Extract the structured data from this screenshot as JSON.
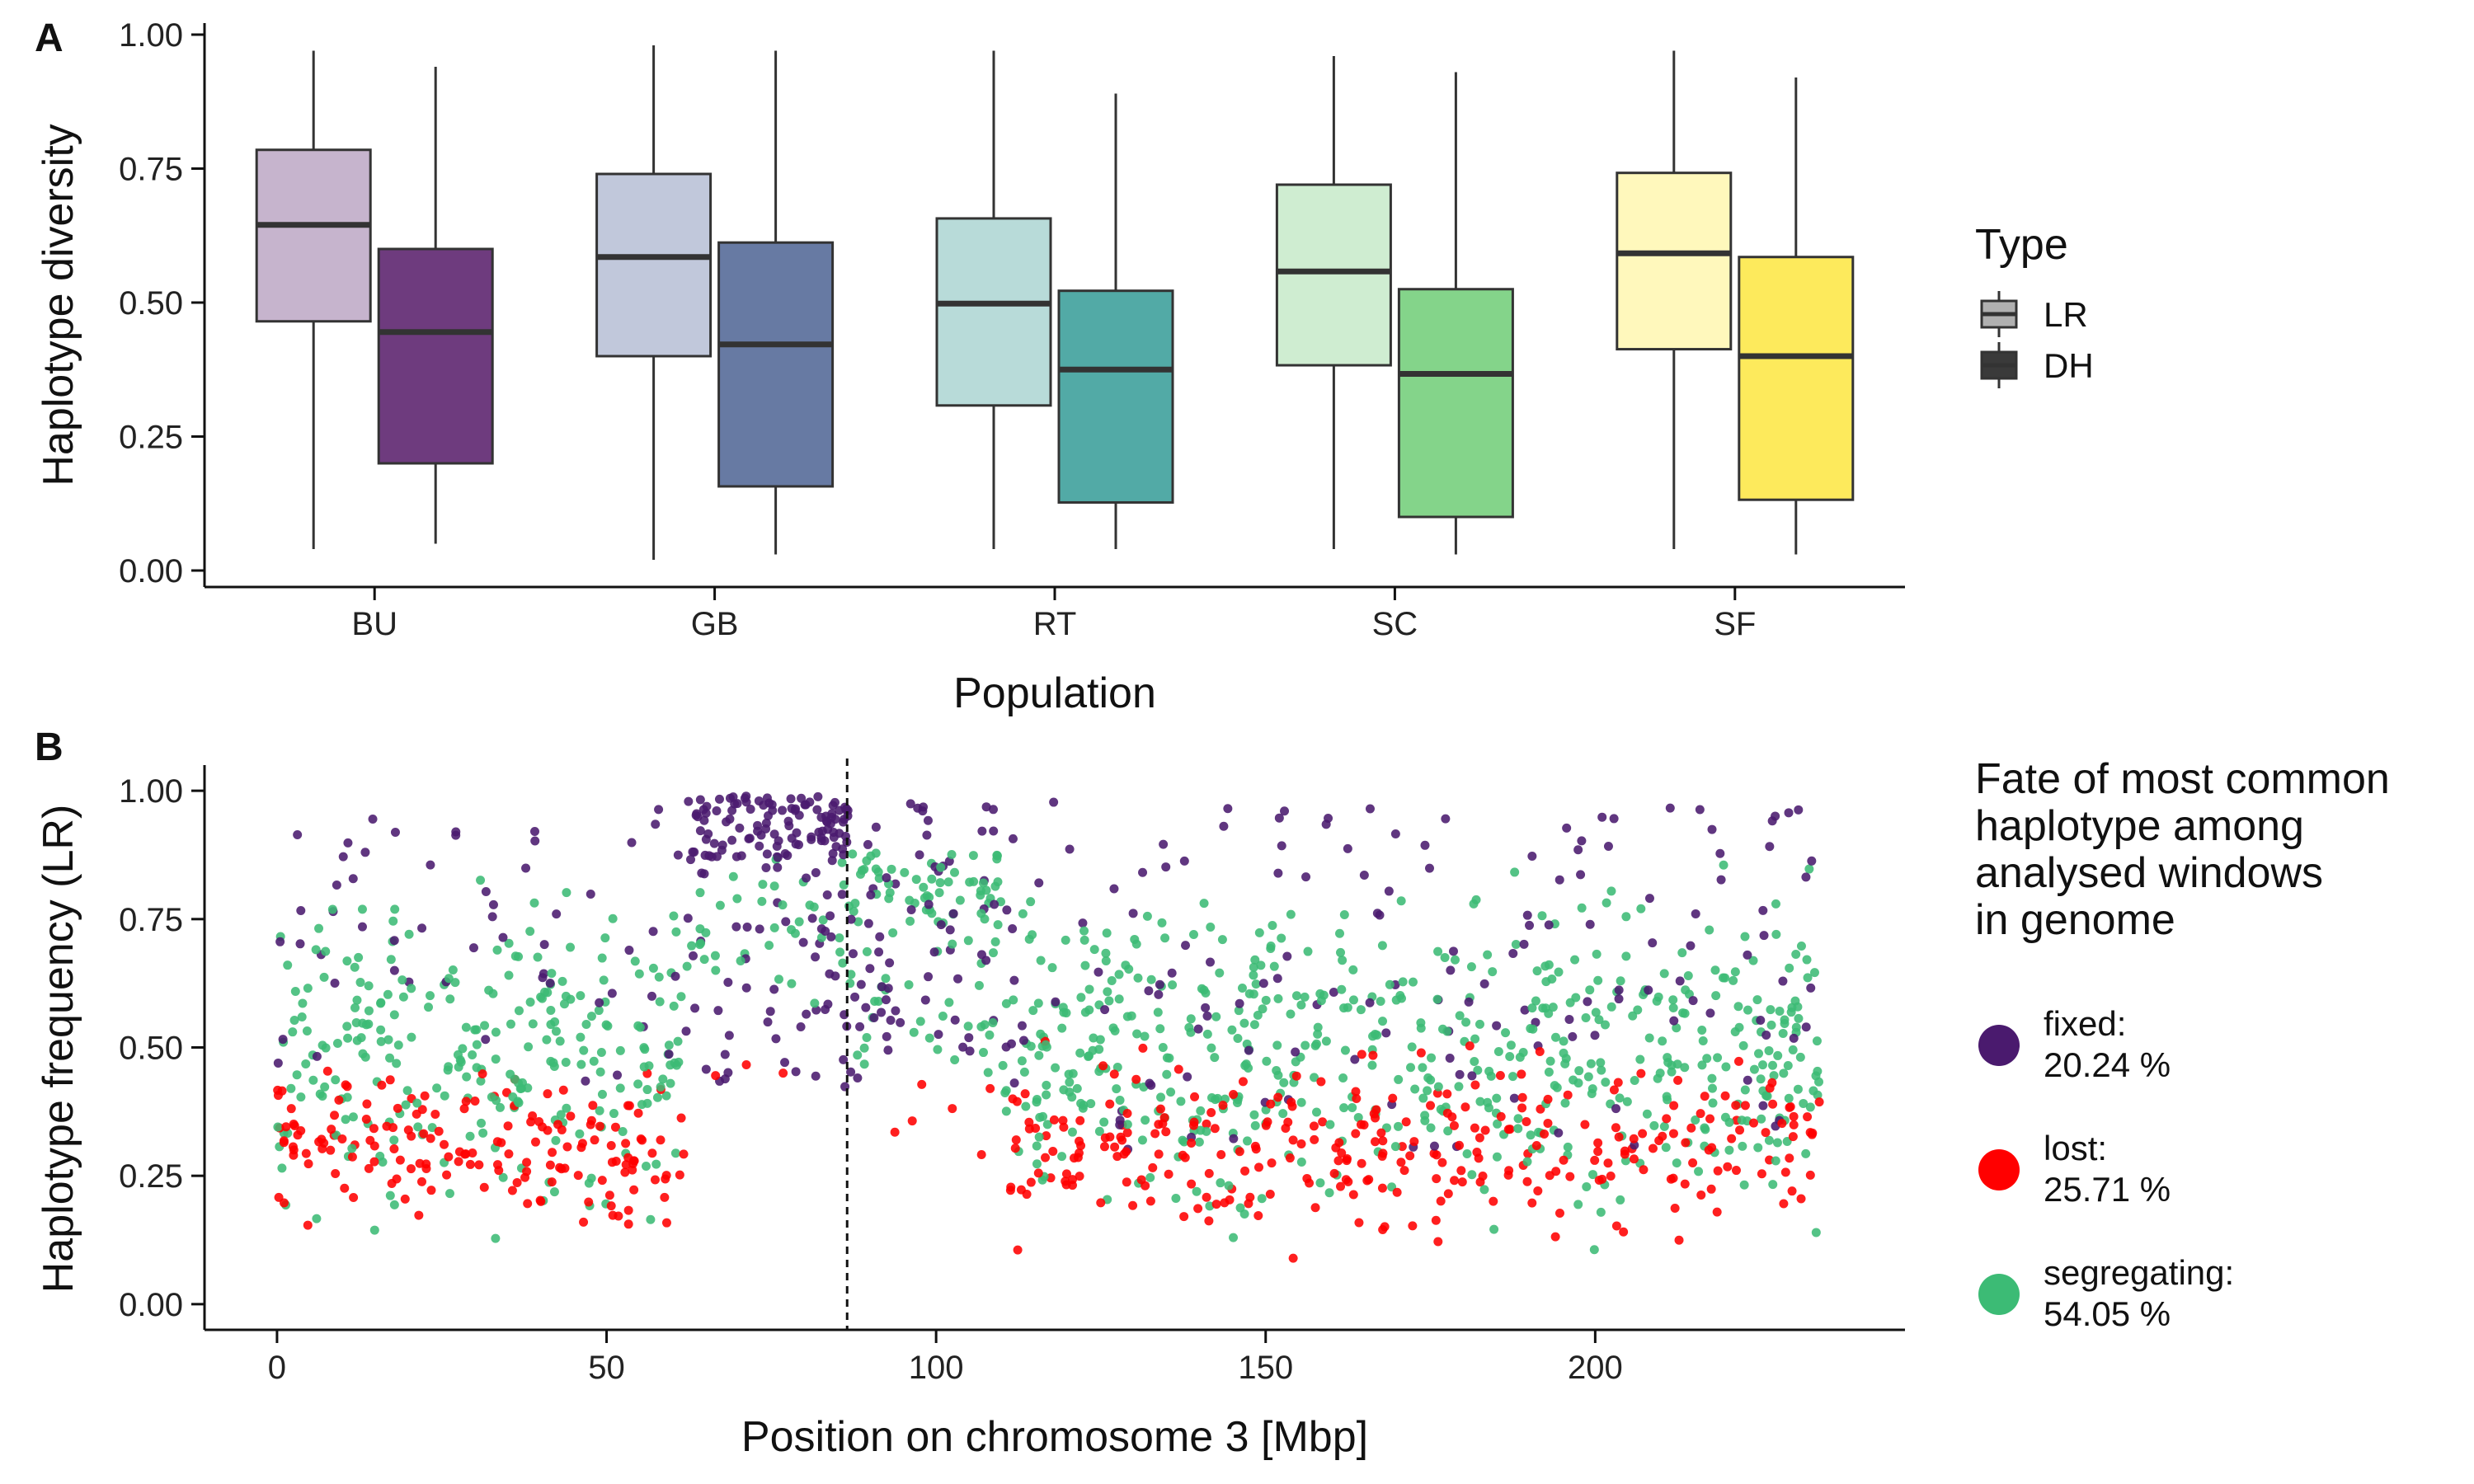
{
  "chart_data": [
    {
      "type": "box",
      "panel": "A",
      "xlabel": "Population",
      "ylabel": "Haplotype diversity",
      "ylim": [
        0,
        1
      ],
      "yticks": [
        "0.00",
        "0.25",
        "0.50",
        "0.75",
        "1.00"
      ],
      "categories": [
        "BU",
        "GB",
        "RT",
        "SC",
        "SF"
      ],
      "legend": {
        "title": "Type",
        "placement": "right",
        "entries": [
          "LR",
          "DH"
        ]
      },
      "series": [
        {
          "name": "LR",
          "stats": [
            {
              "min": 0.04,
              "q1": 0.465,
              "median": 0.645,
              "q3": 0.785,
              "max": 0.97
            },
            {
              "min": 0.02,
              "q1": 0.4,
              "median": 0.585,
              "q3": 0.74,
              "max": 0.98
            },
            {
              "min": 0.04,
              "q1": 0.308,
              "median": 0.498,
              "q3": 0.657,
              "max": 0.97
            },
            {
              "min": 0.04,
              "q1": 0.383,
              "median": 0.558,
              "q3": 0.72,
              "max": 0.96
            },
            {
              "min": 0.04,
              "q1": 0.413,
              "median": 0.592,
              "q3": 0.742,
              "max": 0.97
            }
          ]
        },
        {
          "name": "DH",
          "stats": [
            {
              "min": 0.05,
              "q1": 0.2,
              "median": 0.445,
              "q3": 0.6,
              "max": 0.94
            },
            {
              "min": 0.03,
              "q1": 0.157,
              "median": 0.422,
              "q3": 0.612,
              "max": 0.97
            },
            {
              "min": 0.04,
              "q1": 0.127,
              "median": 0.375,
              "q3": 0.522,
              "max": 0.89
            },
            {
              "min": 0.03,
              "q1": 0.1,
              "median": 0.367,
              "q3": 0.525,
              "max": 0.93
            },
            {
              "min": 0.03,
              "q1": 0.132,
              "median": 0.4,
              "q3": 0.585,
              "max": 0.92
            }
          ]
        }
      ],
      "colors": {
        "LR": [
          "#c6b4cd",
          "#c1c8db",
          "#b8dbd9",
          "#cfedd1",
          "#fff8bc"
        ],
        "DH": [
          "#6e3b7e",
          "#677aa3",
          "#52aaa6",
          "#84d48a",
          "#fdea5c"
        ]
      }
    },
    {
      "type": "scatter",
      "panel": "B",
      "xlabel": "Position on chromosome 3 [Mbp]",
      "ylabel": "Haplotype frequency (LR)",
      "xlim": [
        -11,
        247
      ],
      "ylim": [
        -0.05,
        1.05
      ],
      "xticks": [
        "0",
        "50",
        "100",
        "150",
        "200"
      ],
      "yticks": [
        "0.00",
        "0.25",
        "0.50",
        "0.75",
        "1.00"
      ],
      "reference_line": {
        "x": 86.5,
        "style": "dashed"
      },
      "legend": {
        "title": [
          "Fate of most common",
          "haplotype among",
          "analysed windows",
          "in genome"
        ],
        "placement": "right",
        "entries": [
          {
            "name": "fixed",
            "label": [
              "fixed:",
              "20.24 %"
            ],
            "color": "#4a1a6e",
            "share": 20.24
          },
          {
            "name": "lost",
            "label": [
              "lost:",
              "25.71 %"
            ],
            "color": "#ff0000",
            "share": 25.71
          },
          {
            "name": "segregating",
            "label": [
              "segregating:",
              "54.05 %"
            ],
            "color": "#3cbb75",
            "share": 54.05
          }
        ]
      },
      "regions": [
        {
          "x": [
            0,
            62
          ],
          "fixed": [
            0.38,
            0.97
          ],
          "lost": [
            0.09,
            0.52
          ],
          "segregating": [
            0.06,
            0.91
          ]
        },
        {
          "x": [
            62,
            87
          ],
          "fixed": [
            0.42,
            0.99
          ],
          "lost": [
            0.4,
            0.52
          ],
          "segregating": [
            0.55,
            0.93
          ]
        },
        {
          "x": [
            87,
            110
          ],
          "fixed": [
            0.38,
            0.99
          ],
          "lost": [
            0.2,
            0.5
          ],
          "segregating": [
            0.45,
            0.88
          ]
        },
        {
          "x": [
            110,
            234
          ],
          "fixed": [
            0.28,
            0.98
          ],
          "lost": [
            0.07,
            0.55
          ],
          "segregating": [
            0.06,
            0.93
          ]
        }
      ]
    }
  ]
}
